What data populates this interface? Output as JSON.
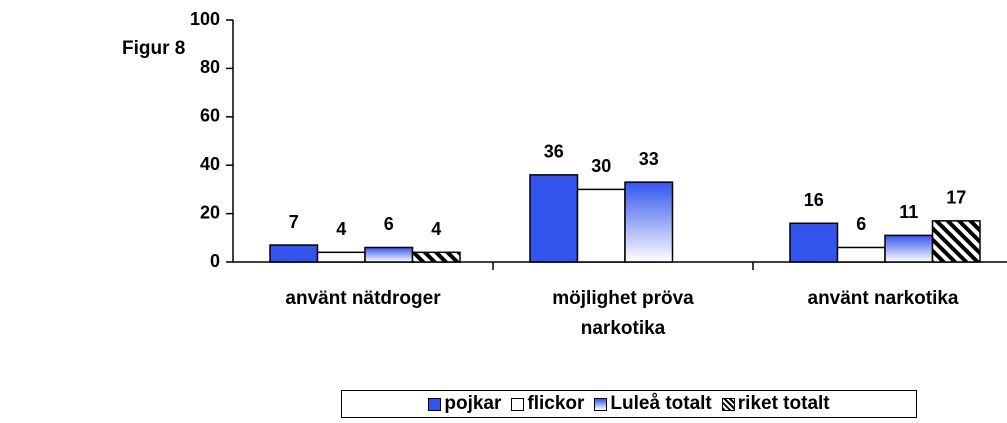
{
  "chart_data": {
    "type": "bar",
    "annotations": [
      "Figur 8"
    ],
    "categories": [
      "använt nätdroger",
      "möjlighet pröva narkotika",
      "använt narkotika"
    ],
    "series": [
      {
        "name": "pojkar",
        "color": "#3355ee",
        "fill": "solid",
        "values": [
          7,
          36,
          16
        ]
      },
      {
        "name": "flickor",
        "color": "#ffffff",
        "fill": "solid",
        "values": [
          4,
          30,
          6
        ]
      },
      {
        "name": "Luleå totalt",
        "color": "#3355ee",
        "fill": "gradient",
        "values": [
          6,
          33,
          11
        ]
      },
      {
        "name": "riket totalt",
        "color": "#000000",
        "fill": "hatch",
        "values": [
          4,
          null,
          17
        ]
      }
    ],
    "ylim": [
      0,
      100
    ],
    "yticks": [
      0,
      20,
      40,
      60,
      80,
      100
    ],
    "grid": false,
    "legend": "bottom"
  }
}
